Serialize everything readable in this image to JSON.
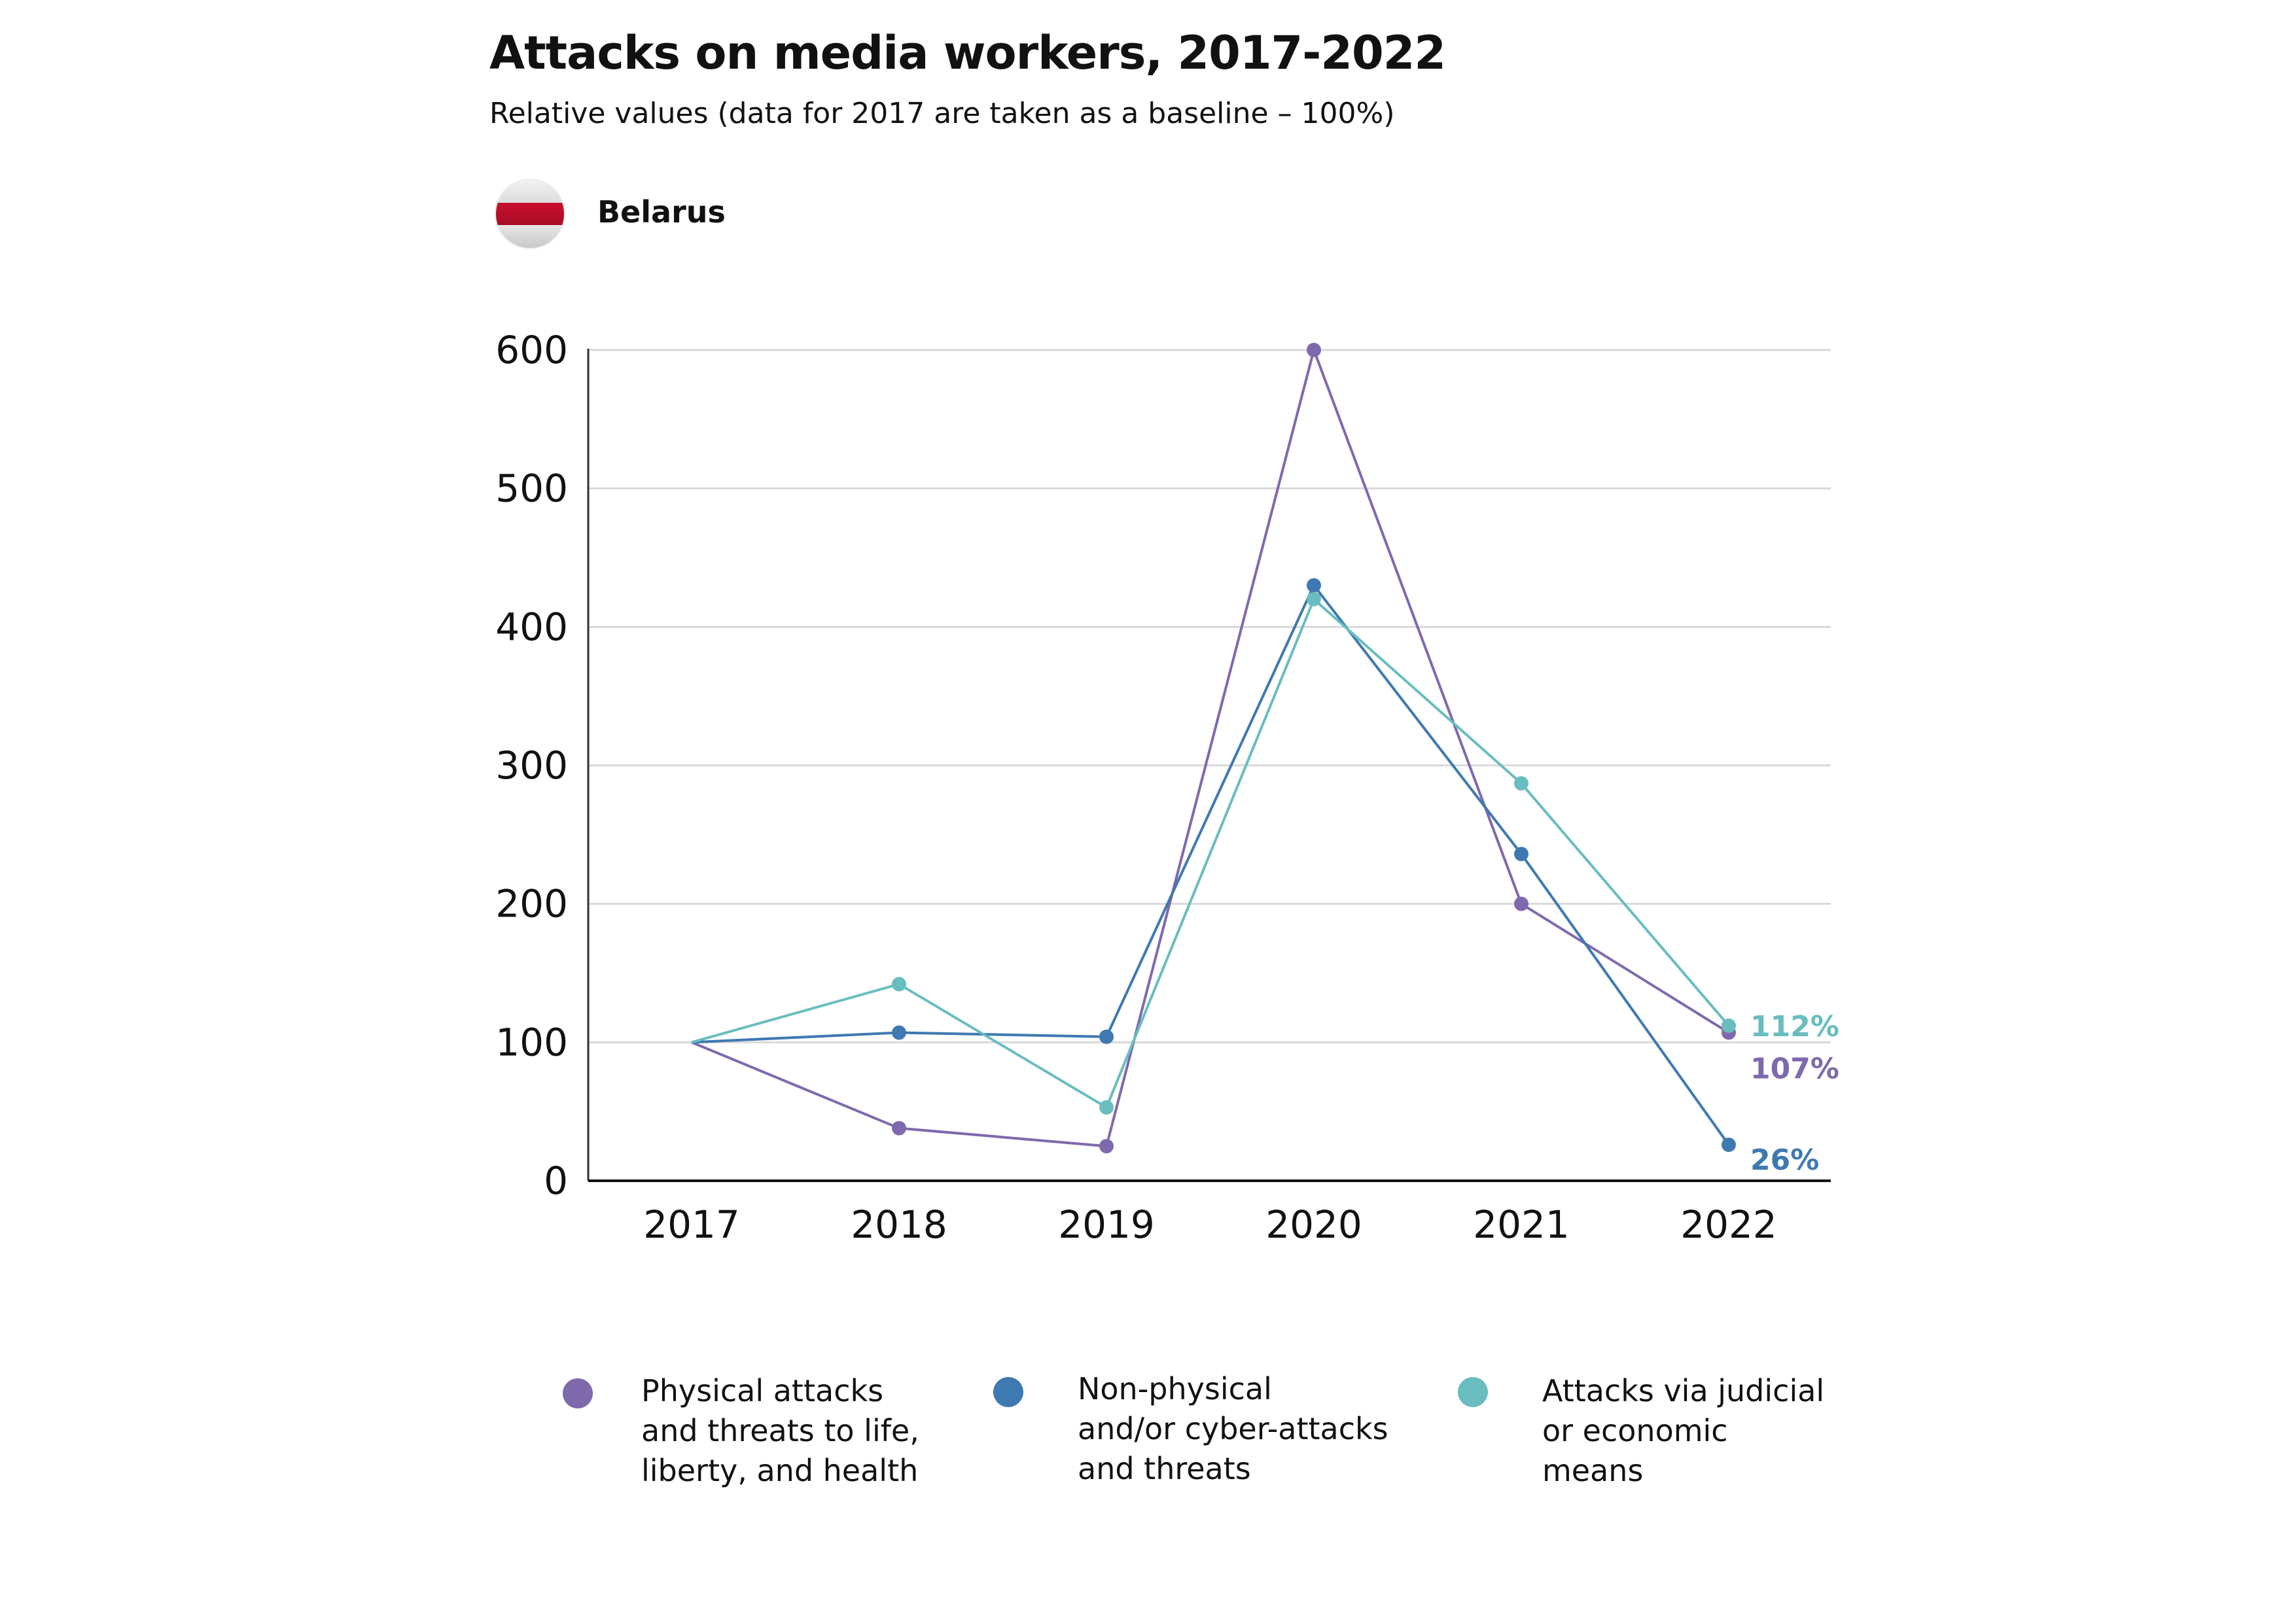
{
  "header": {
    "title": "Attacks on media workers, 2017-2022",
    "subtitle": "Relative values (data for 2017 are taken as a baseline – 100%)",
    "country": "Belarus",
    "flag_icon": "belarus-white-red-white-flag-icon"
  },
  "colors": {
    "physical": "#7f69ad",
    "non_physical": "#3f79b1",
    "judicial": "#69bdbf",
    "grid": "#d9d9d9",
    "axis": "#111111"
  },
  "chart_data": {
    "type": "line",
    "title": "Attacks on media workers, 2017-2022",
    "subtitle": "Relative values (data for 2017 are taken as a baseline – 100%)",
    "x": [
      "2017",
      "2018",
      "2019",
      "2020",
      "2021",
      "2022"
    ],
    "ylim": [
      0,
      600
    ],
    "yticks": [
      0,
      100,
      200,
      300,
      400,
      500,
      600
    ],
    "grid": true,
    "legend_position": "bottom",
    "series": [
      {
        "key": "physical",
        "name": "Physical attacks\nand threats to life,\nliberty, and health",
        "values": [
          100,
          38,
          25,
          600,
          200,
          107
        ],
        "end_label": "107%"
      },
      {
        "key": "non_physical",
        "name": "Non-physical\nand/or cyber-attacks\nand threats",
        "values": [
          100,
          107,
          104,
          430,
          236,
          26
        ],
        "end_label": "26%"
      },
      {
        "key": "judicial",
        "name": "Attacks via judicial\nor economic\nmeans",
        "values": [
          100,
          142,
          53,
          420,
          287,
          112
        ],
        "end_label": "112%"
      }
    ]
  }
}
